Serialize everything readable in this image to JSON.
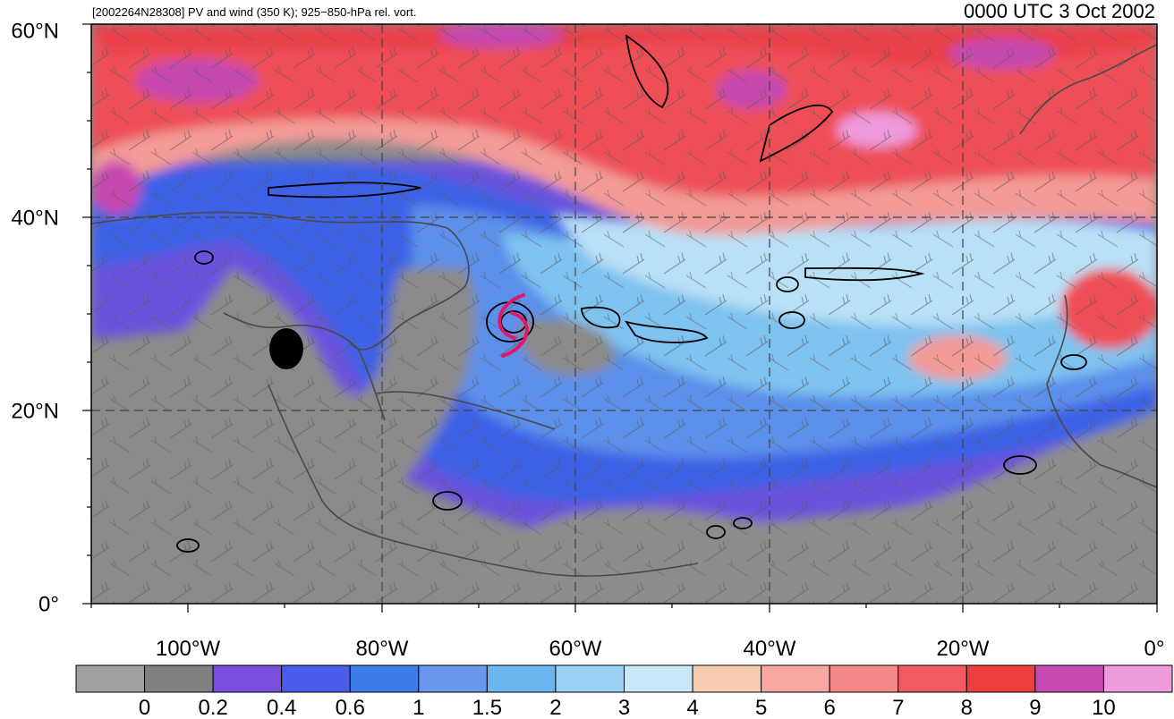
{
  "header": {
    "left_title": "[2002264N28308] PV and wind (350 K); 925−850-hPa rel. vort.",
    "right_title": "0000 UTC 3 Oct 2002"
  },
  "map": {
    "lon_range": [
      -110,
      0
    ],
    "lat_range": [
      0,
      60
    ],
    "lat_labels": [
      "60°N",
      "40°N",
      "20°N",
      "0°"
    ],
    "lon_labels": [
      "100°W",
      "80°W",
      "60°W",
      "40°W",
      "20°W",
      "0°"
    ],
    "storm_symbol_color": "#e0186c"
  },
  "colorbar": {
    "colors": [
      "#a0a0a0",
      "#808080",
      "#7a4fe0",
      "#4a5de8",
      "#3c7de8",
      "#6a96ec",
      "#6ab6ee",
      "#9ad2f4",
      "#c8e8f8",
      "#f8ccb0",
      "#f8a8a0",
      "#f48888",
      "#f05a60",
      "#ee3e3e",
      "#c84ab0",
      "#ee9adc"
    ],
    "tick_labels": [
      "0",
      "0.2",
      "0.4",
      "0.6",
      "1",
      "1.5",
      "2",
      "3",
      "4",
      "5",
      "6",
      "7",
      "8",
      "9",
      "10"
    ]
  }
}
